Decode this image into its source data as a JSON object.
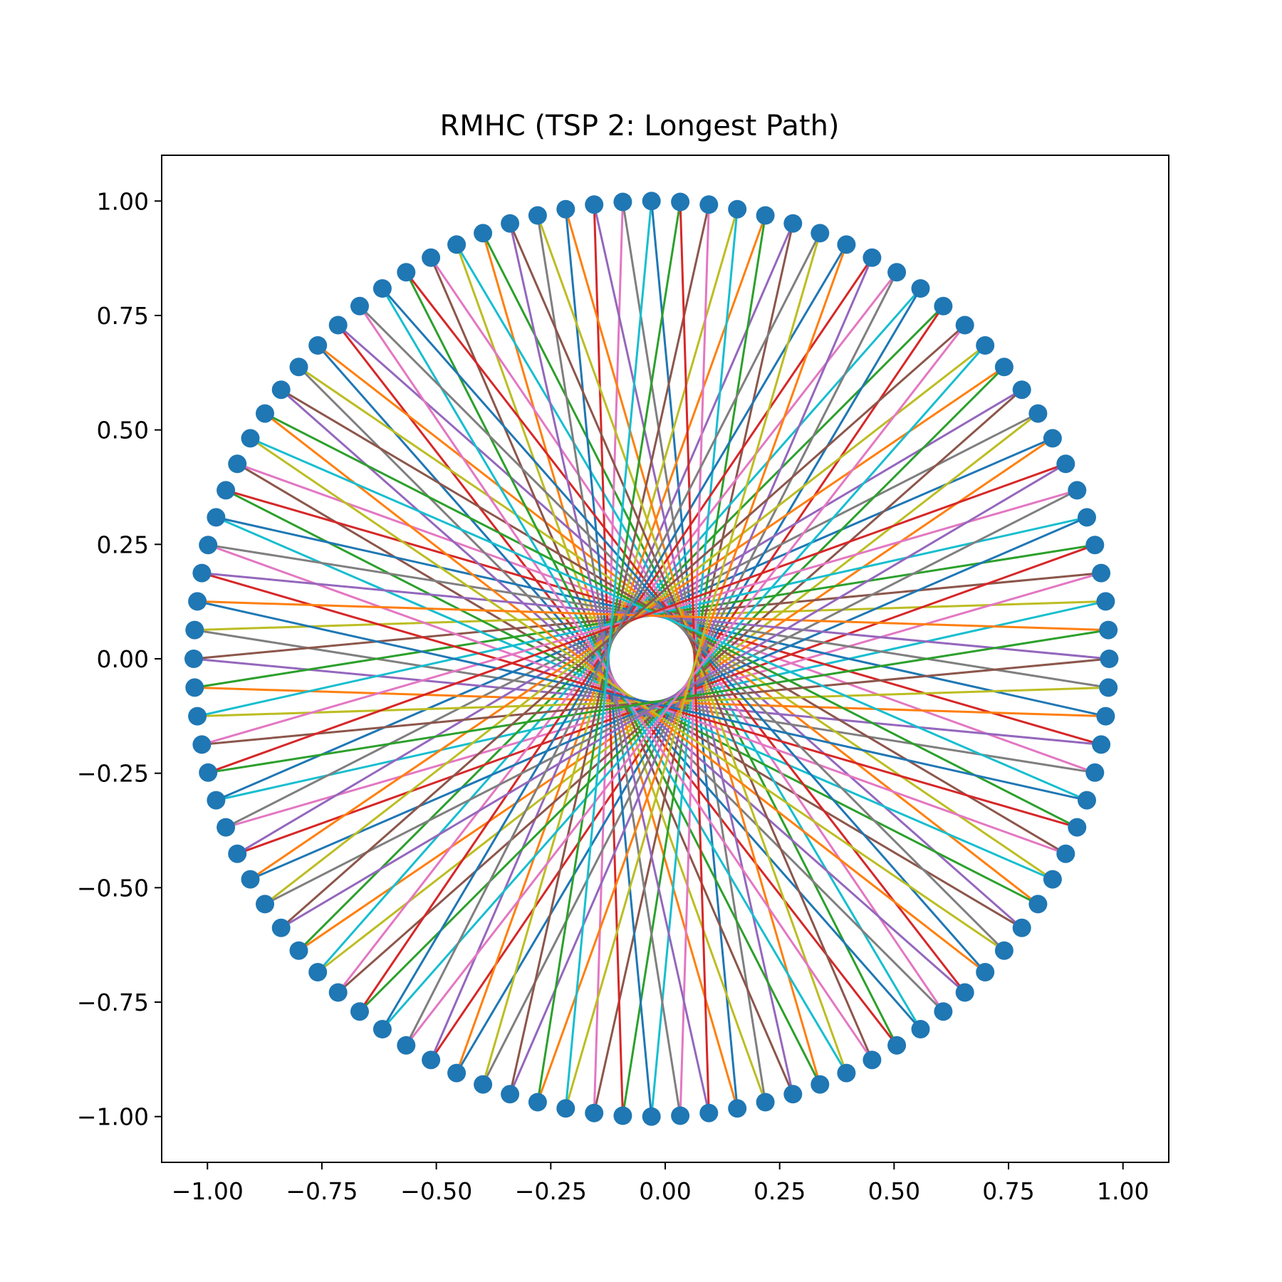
{
  "chart_data": {
    "type": "line",
    "title": "RMHC (TSP 2: Longest Path)",
    "xlabel": "",
    "ylabel": "",
    "xlim": [
      -1.1,
      1.1
    ],
    "ylim": [
      -1.1,
      1.1
    ],
    "xticks": [
      -1.0,
      -0.75,
      -0.5,
      -0.25,
      0.0,
      0.25,
      0.5,
      0.75,
      1.0
    ],
    "xtick_labels": [
      "−1.00",
      "−0.75",
      "−0.50",
      "−0.25",
      "0.00",
      "0.25",
      "0.50",
      "0.75",
      "1.00"
    ],
    "yticks": [
      -1.0,
      -0.75,
      -0.5,
      -0.25,
      0.0,
      0.25,
      0.5,
      0.75,
      1.0
    ],
    "ytick_labels": [
      "−1.00",
      "−0.75",
      "−0.50",
      "−0.25",
      "0.00",
      "0.25",
      "0.50",
      "0.75",
      "1.00"
    ],
    "grid": false,
    "legend": "none",
    "node_color": "#1f77b4",
    "edge_colors": [
      "#1f77b4",
      "#ff7f0e",
      "#2ca02c",
      "#d62728",
      "#9467bd",
      "#8c564b",
      "#e377c2",
      "#7f7f7f",
      "#bcbd22",
      "#17becf"
    ],
    "points": {
      "count": 100,
      "radius": 1.0,
      "start_angle_deg": 90,
      "direction": "clockwise",
      "x_offset": -0.03
    },
    "tour_step": 47
  }
}
